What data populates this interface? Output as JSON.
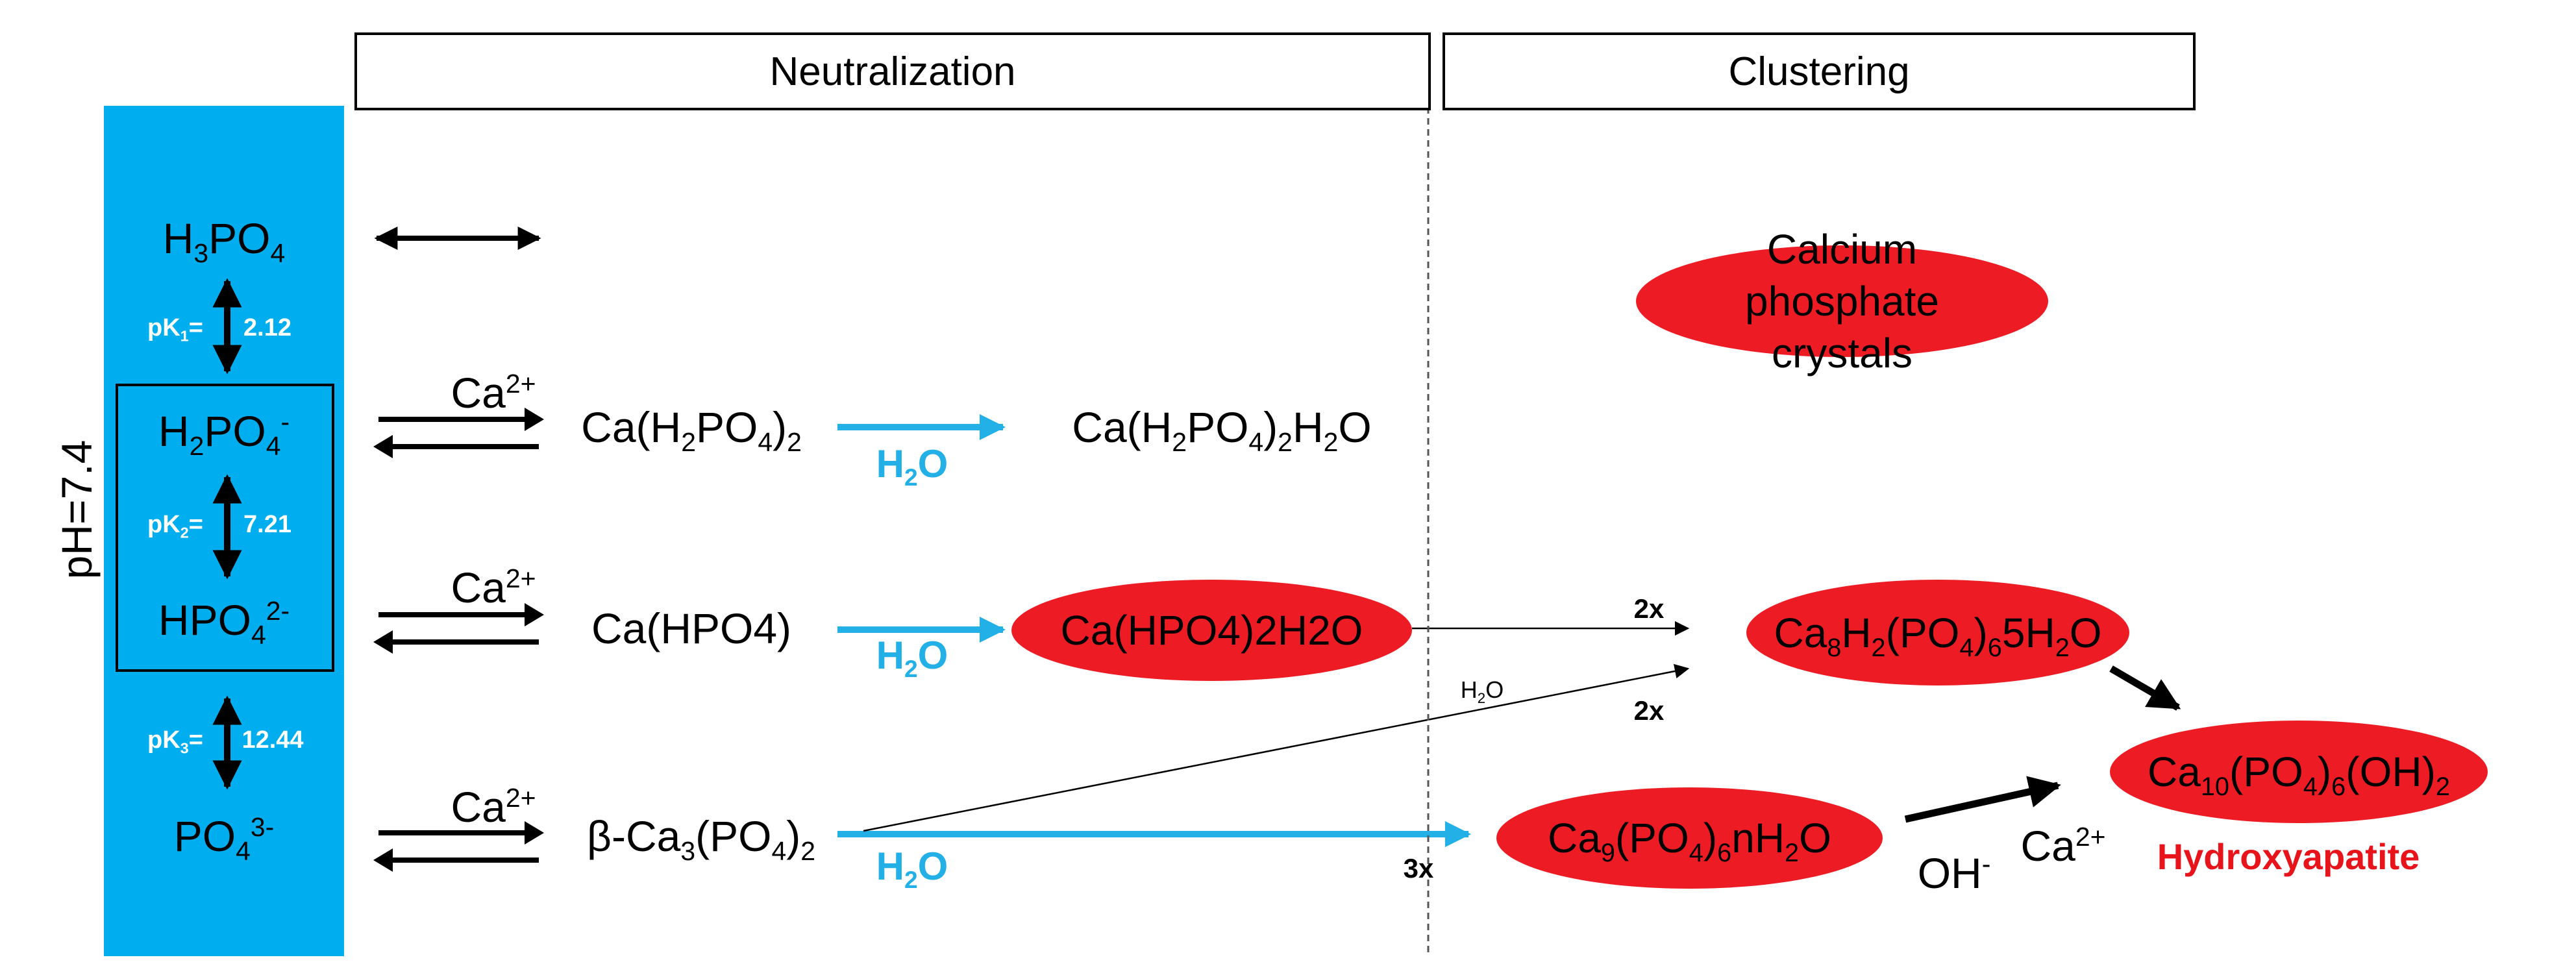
{
  "headers": {
    "neutralization": "Neutralization",
    "clustering": "Clustering"
  },
  "ph_label": "pH=7.4",
  "species": {
    "h3po4": "H3PO4",
    "h2po4": "H2PO4-",
    "hpo4": "HPO42-",
    "po4": "PO43-"
  },
  "pk": [
    {
      "label": "pK1=",
      "value": "2.12"
    },
    {
      "label": "pK2=",
      "value": "7.21"
    },
    {
      "label": "pK3=",
      "value": "12.44"
    }
  ],
  "ca_label": "Ca2+",
  "compounds": {
    "ca_h2po4_2": "Ca(H2PO4)2",
    "ca_h2po4_2_h2o": "Ca(H2PO4)2H2O",
    "ca_hpo4": "Ca(HPO4)",
    "ca_hpo4_2h2o": "Ca(HPO4)2H2O",
    "beta_tcp": "β-Ca3(PO4)2",
    "octacalcium": "Ca8H2(PO4)65H2O",
    "ca9": "Ca9(PO4)6nH2O",
    "hydroxyapatite_formula": "Ca10(PO4)6(OH)2"
  },
  "h2o_label": "H2O",
  "h2o_small": "H2O",
  "multipliers": {
    "two_x": "2x",
    "three_x": "3x"
  },
  "oh_label": "OH-",
  "crystals_label": "Calcium phosphate crystals",
  "hydroxyapatite_label": "Hydroxyapatite",
  "colors": {
    "panel": "#00aeef",
    "ellipse": "#ed1c24",
    "water_arrow": "#22b0e6",
    "hydroxyapatite_text": "#e8141b"
  }
}
